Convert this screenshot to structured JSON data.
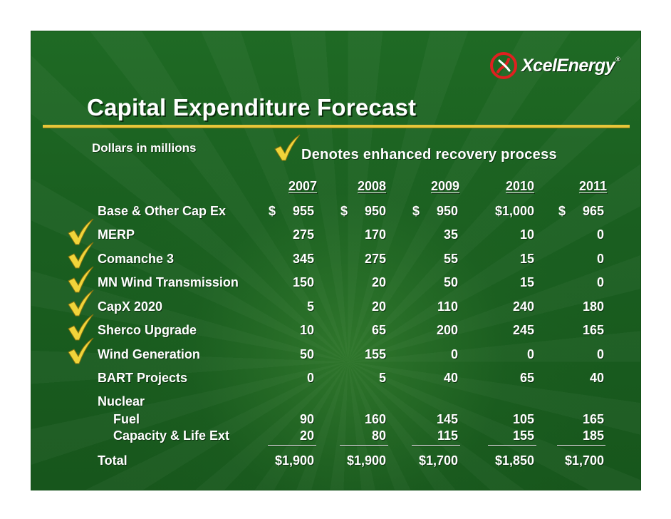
{
  "logo": {
    "text": "XcelEnergy",
    "reg": "®",
    "icon": "xcel-flame-icon",
    "brand_color": "#e02020"
  },
  "title": "Capital Expenditure Forecast",
  "subtitle": "Dollars in millions",
  "legend": {
    "text": "Denotes enhanced recovery process",
    "icon": "checkmark-icon",
    "color": "#f0d43a"
  },
  "years": [
    "2007",
    "2008",
    "2009",
    "2010",
    "2011"
  ],
  "rows": [
    {
      "label": "Base & Other Cap Ex",
      "values": [
        "955",
        "950",
        "950",
        "$1,000",
        "965"
      ],
      "dollar": [
        "$",
        "$",
        "$",
        "",
        "$"
      ],
      "checked": false
    },
    {
      "label": "MERP",
      "values": [
        "275",
        "170",
        "35",
        "10",
        "0"
      ],
      "checked": true
    },
    {
      "label": "Comanche 3",
      "values": [
        "345",
        "275",
        "55",
        "15",
        "0"
      ],
      "checked": true
    },
    {
      "label": "MN Wind Transmission",
      "values": [
        "150",
        "20",
        "50",
        "15",
        "0"
      ],
      "checked": true
    },
    {
      "label": "CapX 2020",
      "values": [
        "5",
        "20",
        "110",
        "240",
        "180"
      ],
      "checked": true
    },
    {
      "label": "Sherco Upgrade",
      "values": [
        "10",
        "65",
        "200",
        "245",
        "165"
      ],
      "checked": true
    },
    {
      "label": "Wind Generation",
      "values": [
        "50",
        "155",
        "0",
        "0",
        "0"
      ],
      "checked": true
    },
    {
      "label": "BART Projects",
      "values": [
        "0",
        "5",
        "40",
        "65",
        "40"
      ],
      "checked": false
    }
  ],
  "nuclear": {
    "label": "Nuclear",
    "rows": [
      {
        "label": "Fuel",
        "values": [
          "90",
          "160",
          "145",
          "105",
          "165"
        ]
      },
      {
        "label": "Capacity & Life Ext",
        "values": [
          "20",
          "80",
          "115",
          "155",
          "185"
        ]
      }
    ]
  },
  "total": {
    "label": "Total",
    "values": [
      "$1,900",
      "$1,900",
      "$1,700",
      "$1,850",
      "$1,700"
    ]
  }
}
